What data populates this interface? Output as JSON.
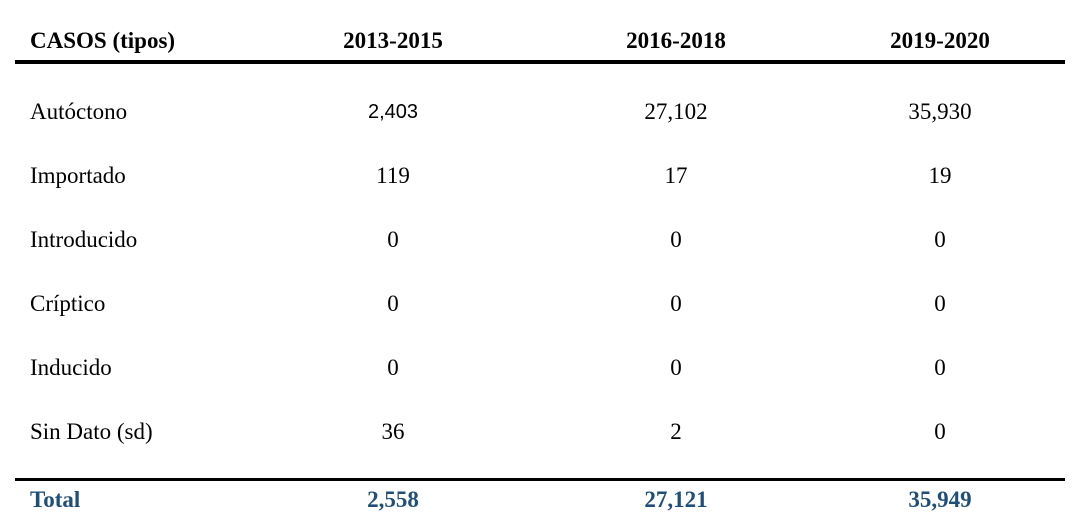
{
  "table": {
    "title": "CASOS (tipos)",
    "columns": [
      "CASOS (tipos)",
      "2013-2015",
      "2016-2018",
      "2019-2020"
    ],
    "rows": [
      {
        "label": "Autóctono",
        "values": [
          "2,403",
          "27,102",
          "35,930"
        ]
      },
      {
        "label": "Importado",
        "values": [
          "119",
          "17",
          "19"
        ]
      },
      {
        "label": "Introducido",
        "values": [
          "0",
          "0",
          "0"
        ]
      },
      {
        "label": "Críptico",
        "values": [
          "0",
          "0",
          "0"
        ]
      },
      {
        "label": "Inducido",
        "values": [
          "0",
          "0",
          "0"
        ]
      },
      {
        "label": "Sin Dato (sd)",
        "values": [
          "36",
          "2",
          "0"
        ]
      }
    ],
    "total": {
      "label": "Total",
      "values": [
        "2,558",
        "27,121",
        "35,949"
      ]
    },
    "colors": {
      "text": "#000000",
      "rule": "#000000",
      "total_text": "#1F4E79"
    }
  },
  "chart_data": {
    "type": "table",
    "title": "CASOS (tipos)",
    "categories": [
      "2013-2015",
      "2016-2018",
      "2019-2020"
    ],
    "series": [
      {
        "name": "Autóctono",
        "values": [
          2403,
          27102,
          35930
        ]
      },
      {
        "name": "Importado",
        "values": [
          119,
          17,
          19
        ]
      },
      {
        "name": "Introducido",
        "values": [
          0,
          0,
          0
        ]
      },
      {
        "name": "Críptico",
        "values": [
          0,
          0,
          0
        ]
      },
      {
        "name": "Inducido",
        "values": [
          0,
          0,
          0
        ]
      },
      {
        "name": "Sin Dato (sd)",
        "values": [
          36,
          2,
          0
        ]
      },
      {
        "name": "Total",
        "values": [
          2558,
          27121,
          35949
        ]
      }
    ]
  }
}
